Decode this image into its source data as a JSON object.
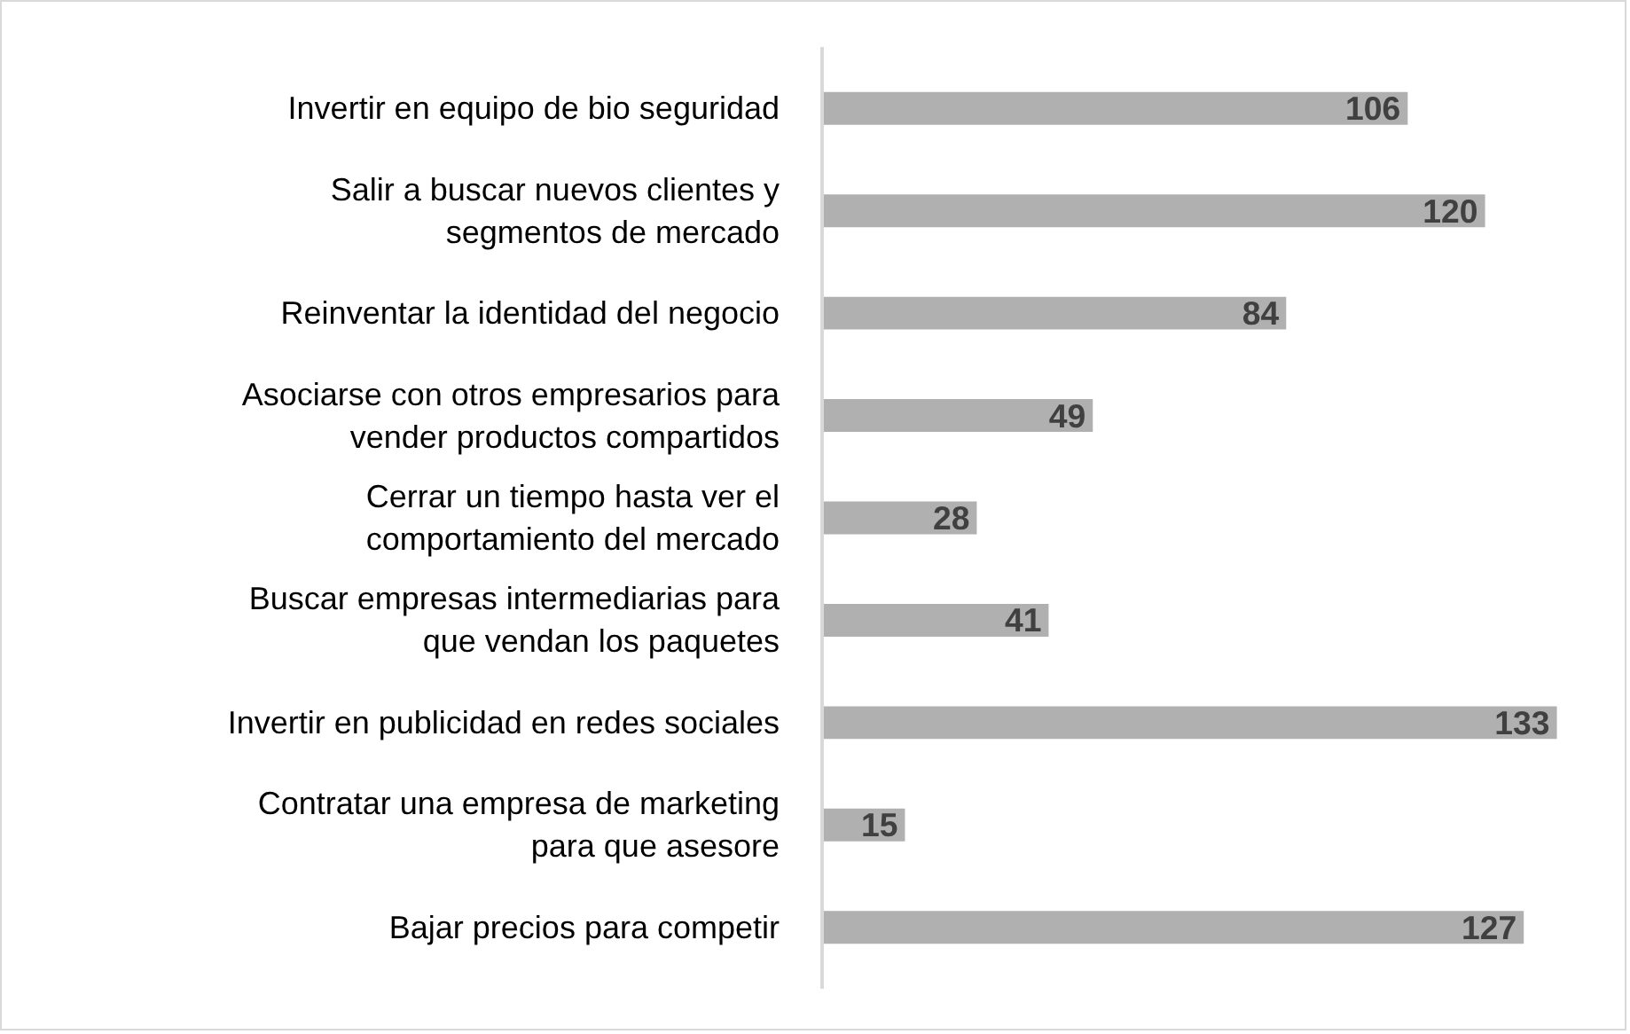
{
  "chart_data": {
    "type": "bar",
    "orientation": "horizontal",
    "categories": [
      "Invertir en equipo de bio seguridad",
      "Salir a buscar nuevos clientes y\nsegmentos de mercado",
      "Reinventar la identidad del negocio",
      "Asociarse con otros empresarios para\nvender productos compartidos",
      "Cerrar un tiempo hasta ver el\ncomportamiento del mercado",
      "Buscar empresas intermediarias para\nque vendan los paquetes",
      "Invertir en publicidad en redes sociales",
      "Contratar una empresa de marketing\npara que asesore",
      "Bajar precios para competir"
    ],
    "values": [
      106,
      120,
      84,
      49,
      28,
      41,
      133,
      15,
      127
    ],
    "color": "#b0b0b0",
    "data_labels": true,
    "grid": false
  }
}
